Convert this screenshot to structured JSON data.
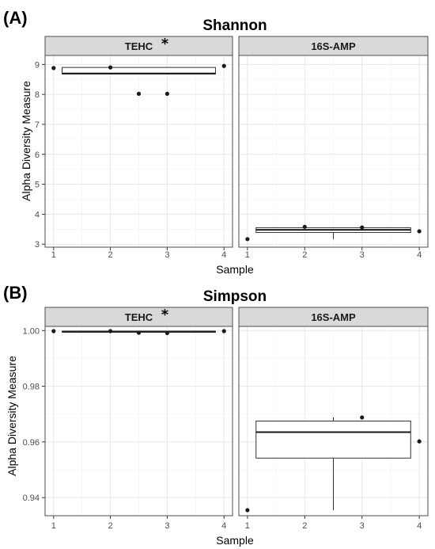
{
  "figures": [
    {
      "tag": "(A)",
      "title": "Shannon",
      "ylabel": "Alpha Diversity Measure",
      "xlabel": "Sample",
      "ylim": [
        2.9,
        9.3
      ],
      "yticks": [
        3,
        4,
        5,
        6,
        7,
        8,
        9
      ],
      "ytick_labels": [
        "3",
        "4",
        "5",
        "6",
        "7",
        "8",
        "9"
      ],
      "xlim": [
        0.85,
        4.15
      ],
      "xticks": [
        1,
        2,
        3,
        4
      ],
      "xtick_labels": [
        "1",
        "2",
        "3",
        "4"
      ],
      "panels": [
        {
          "label": "TEHC",
          "star": "*",
          "points": [
            [
              1,
              8.88
            ],
            [
              2,
              8.9
            ],
            [
              2.5,
              8.02
            ],
            [
              3,
              8.02
            ],
            [
              4,
              8.95
            ]
          ],
          "box": {
            "q1": 8.68,
            "median": 8.7,
            "q3": 8.9,
            "whisker_low": 8.68,
            "whisker_high": 8.9
          }
        },
        {
          "label": "16S-AMP",
          "star": "",
          "points": [
            [
              1,
              3.17
            ],
            [
              2,
              3.58
            ],
            [
              3,
              3.56
            ],
            [
              4,
              3.43
            ]
          ],
          "box": {
            "q1": 3.39,
            "median": 3.48,
            "q3": 3.55,
            "whisker_low": 3.17,
            "whisker_high": 3.55
          }
        }
      ]
    },
    {
      "tag": "(B)",
      "title": "Simpson",
      "ylabel": "Alpha Diversity Measure",
      "xlabel": "Sample",
      "ylim": [
        0.9335,
        1.0015
      ],
      "yticks": [
        0.94,
        0.96,
        0.98,
        1.0
      ],
      "ytick_labels": [
        "0.94",
        "0.96",
        "0.98",
        "1.00"
      ],
      "xlim": [
        0.85,
        4.15
      ],
      "xticks": [
        1,
        2,
        3,
        4
      ],
      "xtick_labels": [
        "1",
        "2",
        "3",
        "4"
      ],
      "panels": [
        {
          "label": "TEHC",
          "star": "*",
          "points": [
            [
              1,
              0.9998
            ],
            [
              2,
              0.9998
            ],
            [
              2.5,
              0.9992
            ],
            [
              3,
              0.9991
            ],
            [
              4,
              0.9998
            ]
          ],
          "box": {
            "q1": 0.9994,
            "median": 0.9996,
            "q3": 0.9998,
            "whisker_low": 0.9991,
            "whisker_high": 0.9998
          }
        },
        {
          "label": "16S-AMP",
          "star": "",
          "points": [
            [
              1,
              0.9355
            ],
            [
              3,
              0.9688
            ],
            [
              4,
              0.9602
            ]
          ],
          "box": {
            "q1": 0.9542,
            "median": 0.9635,
            "q3": 0.9675,
            "whisker_low": 0.9355,
            "whisker_high": 0.9688
          }
        }
      ]
    }
  ]
}
